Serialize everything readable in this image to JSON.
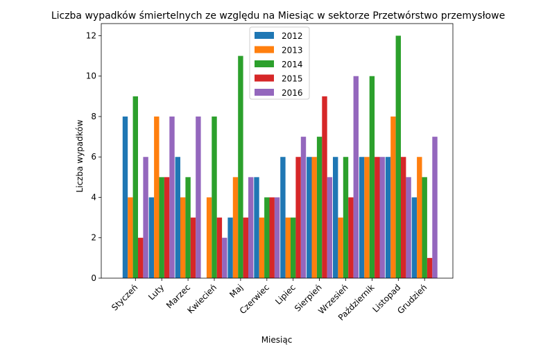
{
  "chart_data": {
    "type": "bar",
    "title": "Liczba wypadków śmiertelnych ze względu na Miesiąc w sektorze Przetwórstwo przemysłowe",
    "xlabel": "Miesiąc",
    "ylabel": "Liczba wypadków",
    "ylim": [
      0,
      12.6
    ],
    "yticks": [
      0,
      2,
      4,
      6,
      8,
      10,
      12
    ],
    "grid": false,
    "legend_position": "top-center",
    "categories": [
      "Styczeń",
      "Luty",
      "Marzec",
      "Kwiecień",
      "Maj",
      "Czerwiec",
      "Lipiec",
      "Sierpień",
      "Wrzesień",
      "Październik",
      "Listopad",
      "Grudzień"
    ],
    "series": [
      {
        "name": "2012",
        "color": "#1f77b4",
        "values": [
          8,
          4,
          6,
          0,
          3,
          5,
          6,
          6,
          6,
          6,
          6,
          4
        ]
      },
      {
        "name": "2013",
        "color": "#ff7f0e",
        "values": [
          4,
          8,
          4,
          4,
          5,
          3,
          3,
          6,
          3,
          6,
          8,
          6
        ]
      },
      {
        "name": "2014",
        "color": "#2ca02c",
        "values": [
          9,
          5,
          5,
          8,
          11,
          4,
          3,
          7,
          6,
          10,
          12,
          5
        ]
      },
      {
        "name": "2015",
        "color": "#d62728",
        "values": [
          2,
          5,
          3,
          3,
          3,
          4,
          6,
          9,
          4,
          6,
          6,
          1
        ]
      },
      {
        "name": "2016",
        "color": "#9467bd",
        "values": [
          6,
          8,
          8,
          2,
          5,
          4,
          7,
          5,
          10,
          6,
          5,
          7
        ]
      }
    ]
  }
}
